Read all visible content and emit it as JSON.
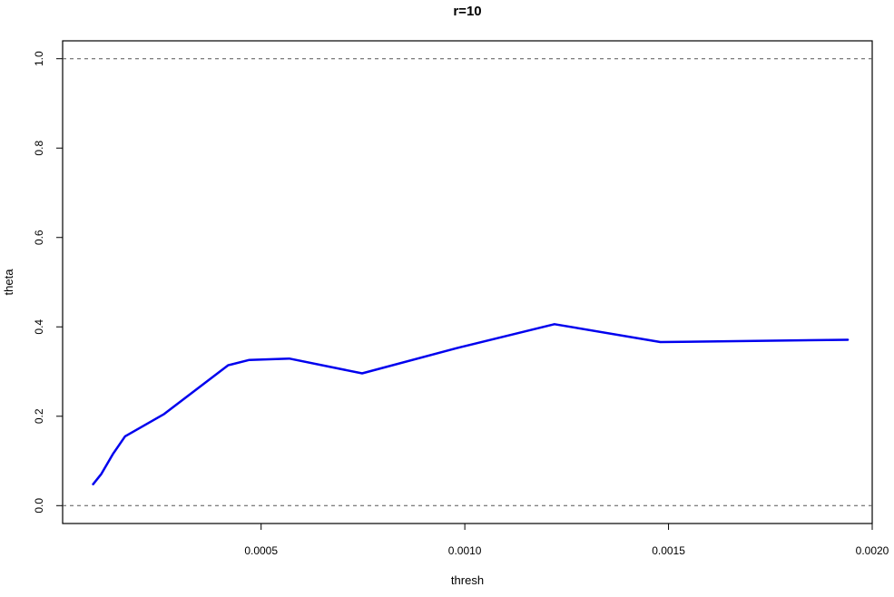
{
  "chart_data": {
    "type": "line",
    "title": "r=10",
    "xlabel": "thresh",
    "ylabel": "theta",
    "xlim": [
      1.28e-05,
      0.002
    ],
    "ylim": [
      -0.04,
      1.04
    ],
    "xticks": [
      0.0005,
      0.001,
      0.0015,
      0.002
    ],
    "xtick_labels": [
      "0.0005",
      "0.0010",
      "0.0015",
      "0.0020"
    ],
    "yticks": [
      0.0,
      0.2,
      0.4,
      0.6,
      0.8,
      1.0
    ],
    "ytick_labels": [
      "0.0",
      "0.2",
      "0.4",
      "0.6",
      "0.8",
      "1.0"
    ],
    "reference_lines": [
      0.0,
      1.0
    ],
    "grid": false,
    "line_color": "#0000ee",
    "reference_line_color": "#555555",
    "series": [
      {
        "x": [
          8.76e-05,
          0.000108,
          0.000136,
          0.000166,
          0.000262,
          0.000419,
          0.000471,
          0.000569,
          0.000748,
          0.000978,
          0.00122,
          0.00148,
          0.00194
        ],
        "y": [
          0.048,
          0.071,
          0.115,
          0.155,
          0.205,
          0.314,
          0.326,
          0.329,
          0.296,
          0.352,
          0.406,
          0.366,
          0.371
        ]
      }
    ]
  }
}
